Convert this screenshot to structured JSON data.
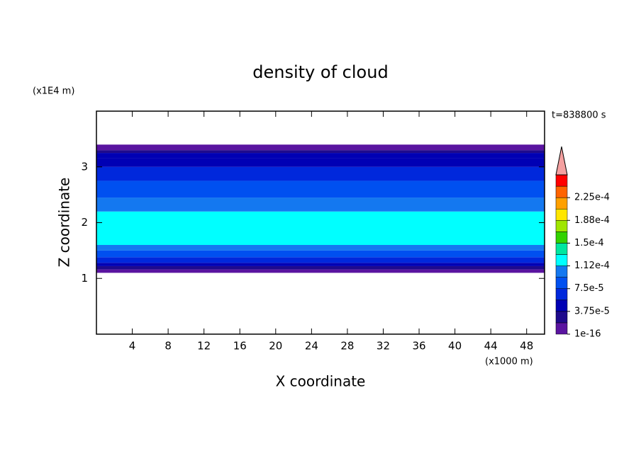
{
  "chart_data": {
    "type": "contour",
    "title": "density of cloud",
    "x_label": "X coordinate",
    "y_label": "Z coordinate",
    "x_unit": "(x1000 m)",
    "y_unit": "(x1E4 m)",
    "time_label": "t=838800 s",
    "xlim": [
      0,
      50
    ],
    "xticks": [
      4,
      8,
      12,
      16,
      20,
      24,
      28,
      32,
      36,
      40,
      44,
      48
    ],
    "ylim": [
      0,
      4
    ],
    "yticks": [
      1,
      2,
      3
    ],
    "layers": [
      {
        "zlim": [
          1.1,
          1.16
        ],
        "color": "#5a14a0"
      },
      {
        "zlim": [
          1.16,
          1.22
        ],
        "color": "#1e0a8c"
      },
      {
        "zlim": [
          1.22,
          1.28
        ],
        "color": "#0000b4"
      },
      {
        "zlim": [
          1.28,
          1.38
        ],
        "color": "#0028dc"
      },
      {
        "zlim": [
          1.38,
          1.5
        ],
        "color": "#0050f0"
      },
      {
        "zlim": [
          1.5,
          1.6
        ],
        "color": "#1478f0"
      },
      {
        "zlim": [
          1.6,
          2.2
        ],
        "color": "#00ffff"
      },
      {
        "zlim": [
          2.2,
          2.45
        ],
        "color": "#1478f0"
      },
      {
        "zlim": [
          2.45,
          2.75
        ],
        "color": "#0050f0"
      },
      {
        "zlim": [
          2.75,
          3.0
        ],
        "color": "#0028dc"
      },
      {
        "zlim": [
          3.0,
          3.15
        ],
        "color": "#0000b4"
      },
      {
        "zlim": [
          3.15,
          3.25
        ],
        "color": "#0000b4"
      },
      {
        "zlim": [
          3.25,
          3.3
        ],
        "color": "#1e0a8c"
      },
      {
        "zlim": [
          3.3,
          3.4
        ],
        "color": "#5a14a0"
      }
    ],
    "colorbar": {
      "clim": [
        1e-16,
        0.0002625
      ],
      "colors": [
        "#5a14a0",
        "#1e0a8c",
        "#0000b4",
        "#0028dc",
        "#0050f0",
        "#1478f0",
        "#00ffff",
        "#00e6a0",
        "#32d200",
        "#a0e600",
        "#ffe600",
        "#ffa000",
        "#ff6400",
        "#ff0000"
      ],
      "extend_color": "#f4a0a0",
      "ticks": [
        {
          "value": 1e-16,
          "label": "1e-16"
        },
        {
          "value": 3.75e-05,
          "label": "3.75e-5"
        },
        {
          "value": 7.5e-05,
          "label": "7.5e-5"
        },
        {
          "value": 0.0001125,
          "label": "1.12e-4"
        },
        {
          "value": 0.00015,
          "label": "1.5e-4"
        },
        {
          "value": 0.0001875,
          "label": "1.88e-4"
        },
        {
          "value": 0.000225,
          "label": "2.25e-4"
        }
      ]
    }
  }
}
